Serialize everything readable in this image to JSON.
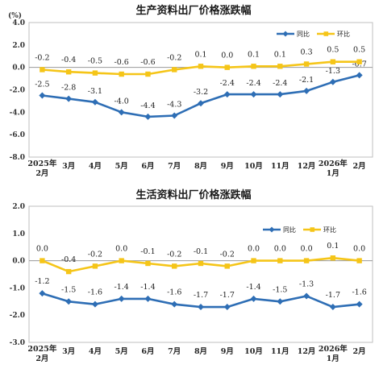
{
  "chart_data": [
    {
      "type": "line",
      "title": "生产资料出厂价格涨跌幅",
      "unit": "(%)",
      "categories": [
        [
          "2025年",
          "2月"
        ],
        [
          "3月"
        ],
        [
          "4月"
        ],
        [
          "5月"
        ],
        [
          "6月"
        ],
        [
          "7月"
        ],
        [
          "8月"
        ],
        [
          "9月"
        ],
        [
          "10月"
        ],
        [
          "11月"
        ],
        [
          "12月"
        ],
        [
          "2026年",
          "1月"
        ],
        [
          "2月"
        ]
      ],
      "ylim": [
        -8.0,
        4.0
      ],
      "yticks": [
        "4.0",
        "2.0",
        "0.0",
        "-2.0",
        "-4.0",
        "-6.0",
        "-8.0"
      ],
      "legend_position": "top-right",
      "series": [
        {
          "name": "同比",
          "color": "#2e6eb5",
          "marker": "diamond",
          "values": [
            -2.5,
            -2.8,
            -3.1,
            -4.0,
            -4.4,
            -4.3,
            -3.2,
            -2.4,
            -2.4,
            -2.4,
            -2.1,
            -1.3,
            -0.7
          ],
          "labels": [
            "-2.5",
            "-2.8",
            "-3.1",
            "-4.0",
            "-4.4",
            "-4.3",
            "-3.2",
            "-2.4",
            "-2.4",
            "-2.4",
            "-2.1",
            "-1.3",
            "-0.7"
          ]
        },
        {
          "name": "环比",
          "color": "#f5c518",
          "marker": "square",
          "values": [
            -0.2,
            -0.4,
            -0.5,
            -0.6,
            -0.6,
            -0.2,
            0.1,
            0.0,
            0.1,
            0.1,
            0.3,
            0.5,
            0.5
          ],
          "labels": [
            "-0.2",
            "-0.4",
            "-0.5",
            "-0.6",
            "-0.6",
            "-0.2",
            "0.1",
            "0.0",
            "0.1",
            "0.1",
            "0.3",
            "0.5",
            "0.5"
          ]
        }
      ]
    },
    {
      "type": "line",
      "title": "生活资料出厂价格涨跌幅",
      "unit": "",
      "categories": [
        [
          "2025年",
          "2月"
        ],
        [
          "3月"
        ],
        [
          "4月"
        ],
        [
          "5月"
        ],
        [
          "6月"
        ],
        [
          "7月"
        ],
        [
          "8月"
        ],
        [
          "9月"
        ],
        [
          "10月"
        ],
        [
          "11月"
        ],
        [
          "12月"
        ],
        [
          "2026年",
          "1月"
        ],
        [
          "2月"
        ]
      ],
      "ylim": [
        -3.0,
        2.0
      ],
      "yticks": [
        "2.0",
        "1.0",
        "0.0",
        "-1.0",
        "-2.0",
        "-3.0"
      ],
      "legend_position": "top-right",
      "series": [
        {
          "name": "同比",
          "color": "#2e6eb5",
          "marker": "diamond",
          "values": [
            -1.2,
            -1.5,
            -1.6,
            -1.4,
            -1.4,
            -1.6,
            -1.7,
            -1.7,
            -1.4,
            -1.5,
            -1.3,
            -1.7,
            -1.6
          ],
          "labels": [
            "-1.2",
            "-1.5",
            "-1.6",
            "-1.4",
            "-1.4",
            "-1.6",
            "-1.7",
            "-1.7",
            "-1.4",
            "-1.5",
            "-1.3",
            "-1.7",
            "-1.6"
          ]
        },
        {
          "name": "环比",
          "color": "#f5c518",
          "marker": "square",
          "values": [
            0.0,
            -0.4,
            -0.2,
            0.0,
            -0.1,
            -0.2,
            -0.1,
            -0.2,
            0.0,
            0.0,
            0.0,
            0.1,
            0.0
          ],
          "labels": [
            "0.0",
            "-0.4",
            "-0.2",
            "0.0",
            "-0.1",
            "-0.2",
            "-0.1",
            "-0.2",
            "0.0",
            "0.0",
            "0.0",
            "0.1",
            "0.0"
          ]
        }
      ]
    }
  ]
}
